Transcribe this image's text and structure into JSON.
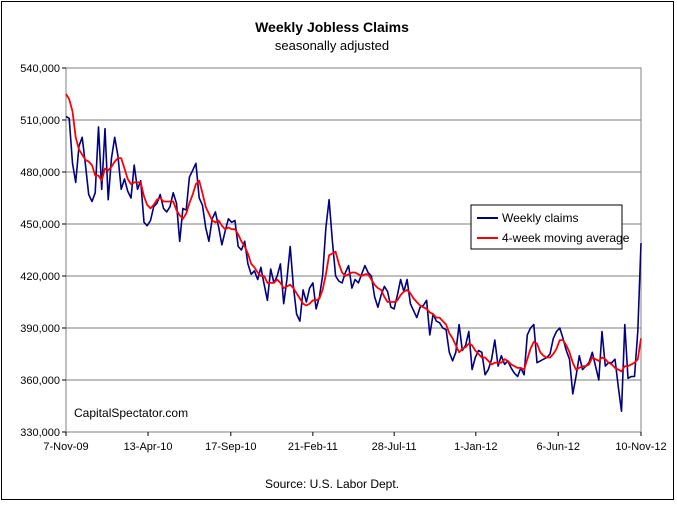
{
  "chart_data": {
    "type": "line",
    "title": "Weekly Jobless Claims",
    "subtitle": "seasonally adjusted",
    "source": "Source: U.S. Labor Dept.",
    "watermark": "CapitalSpectator.com",
    "ylim": [
      330000,
      540000
    ],
    "y_ticks": [
      330000,
      360000,
      390000,
      420000,
      450000,
      480000,
      510000,
      540000
    ],
    "y_tick_labels": [
      "330,000",
      "360,000",
      "390,000",
      "420,000",
      "450,000",
      "480,000",
      "510,000",
      "540,000"
    ],
    "x_tick_labels": [
      "7-Nov-09",
      "13-Apr-10",
      "17-Sep-10",
      "21-Feb-11",
      "28-Jul-11",
      "1-Jan-12",
      "6-Jun-12",
      "10-Nov-12"
    ],
    "x_tick_weeks": [
      0,
      22.4,
      45.0,
      67.4,
      89.6,
      111.9,
      134.4,
      157
    ],
    "grid": "horizontal",
    "legend_position": "right",
    "series": [
      {
        "name": "Weekly claims",
        "color": "#000080",
        "values": [
          512000,
          511000,
          485000,
          474000,
          495000,
          500000,
          484000,
          467000,
          463000,
          468000,
          506000,
          470000,
          505000,
          464000,
          488000,
          500000,
          489000,
          470000,
          476000,
          469000,
          465000,
          484000,
          470000,
          475000,
          451000,
          449000,
          452000,
          460000,
          462000,
          467000,
          459000,
          457000,
          460000,
          468000,
          462000,
          440000,
          459000,
          458000,
          477000,
          481000,
          485000,
          465000,
          461000,
          448000,
          440000,
          453000,
          457000,
          448000,
          438000,
          446000,
          453000,
          451000,
          452000,
          437000,
          435000,
          440000,
          427000,
          421000,
          423000,
          418000,
          425000,
          415000,
          406000,
          424000,
          416000,
          420000,
          427000,
          404000,
          418000,
          437000,
          414000,
          398000,
          394000,
          412000,
          405000,
          413000,
          416000,
          401000,
          408000,
          420000,
          448000,
          464000,
          440000,
          420000,
          417000,
          416000,
          422000,
          426000,
          413000,
          418000,
          416000,
          421000,
          426000,
          422000,
          420000,
          408000,
          402000,
          409000,
          414000,
          411000,
          402000,
          401000,
          409000,
          418000,
          411000,
          418000,
          404000,
          400000,
          396000,
          402000,
          403000,
          406000,
          386000,
          398000,
          394000,
          393000,
          390000,
          389000,
          376000,
          371000,
          376000,
          392000,
          377000,
          380000,
          388000,
          366000,
          373000,
          377000,
          376000,
          363000,
          366000,
          372000,
          383000,
          368000,
          374000,
          369000,
          371000,
          367000,
          364000,
          362000,
          367000,
          363000,
          386000,
          390000,
          392000,
          370000,
          371000,
          372000,
          373000,
          375000,
          384000,
          388000,
          390000,
          384000,
          377000,
          372000,
          352000,
          362000,
          374000,
          366000,
          368000,
          370000,
          376000,
          368000,
          360000,
          388000,
          368000,
          370000,
          370000,
          372000,
          356000,
          342000,
          392000,
          361000,
          362000,
          362000,
          388000,
          439000
        ]
      },
      {
        "name": "4-week moving average",
        "color": "#ff0000",
        "values": [
          525000,
          522000,
          515000,
          500000,
          493000,
          490000,
          487000,
          486000,
          484000,
          478000,
          478000,
          475000,
          482000,
          481000,
          483000,
          486000,
          488000,
          488000,
          482000,
          476000,
          473000,
          474000,
          474000,
          474000,
          466000,
          461000,
          459000,
          461000,
          464000,
          465000,
          463000,
          463000,
          463000,
          463000,
          458000,
          455000,
          453000,
          456000,
          462000,
          467000,
          473000,
          475000,
          468000,
          460000,
          456000,
          452000,
          451000,
          452000,
          449000,
          447000,
          448000,
          447000,
          447000,
          444000,
          440000,
          437000,
          433000,
          427000,
          425000,
          422000,
          420000,
          420000,
          416000,
          416000,
          416000,
          418000,
          416000,
          413000,
          414000,
          415000,
          413000,
          410000,
          407000,
          404000,
          403000,
          404000,
          406000,
          406000,
          407000,
          412000,
          421000,
          432000,
          433000,
          434000,
          427000,
          422000,
          420000,
          421000,
          422000,
          422000,
          421000,
          420000,
          421000,
          421000,
          418000,
          415000,
          413000,
          412000,
          408000,
          405000,
          405000,
          405000,
          406000,
          409000,
          411000,
          412000,
          410000,
          407000,
          405000,
          403000,
          402000,
          401000,
          399000,
          398000,
          396000,
          396000,
          394000,
          392000,
          387000,
          384000,
          380000,
          376000,
          378000,
          379000,
          381000,
          380000,
          377000,
          375000,
          373000,
          373000,
          371000,
          369000,
          370000,
          370000,
          370000,
          372000,
          371000,
          369000,
          368000,
          367000,
          367000,
          366000,
          372000,
          378000,
          382000,
          381000,
          376000,
          374000,
          373000,
          373000,
          375000,
          378000,
          383000,
          383000,
          380000,
          376000,
          370000,
          366000,
          367000,
          368000,
          368000,
          369000,
          373000,
          372000,
          371000,
          373000,
          372000,
          370000,
          369000,
          367000,
          366000,
          365000,
          368000,
          368000,
          369000,
          370000,
          372000,
          384000
        ]
      }
    ]
  }
}
